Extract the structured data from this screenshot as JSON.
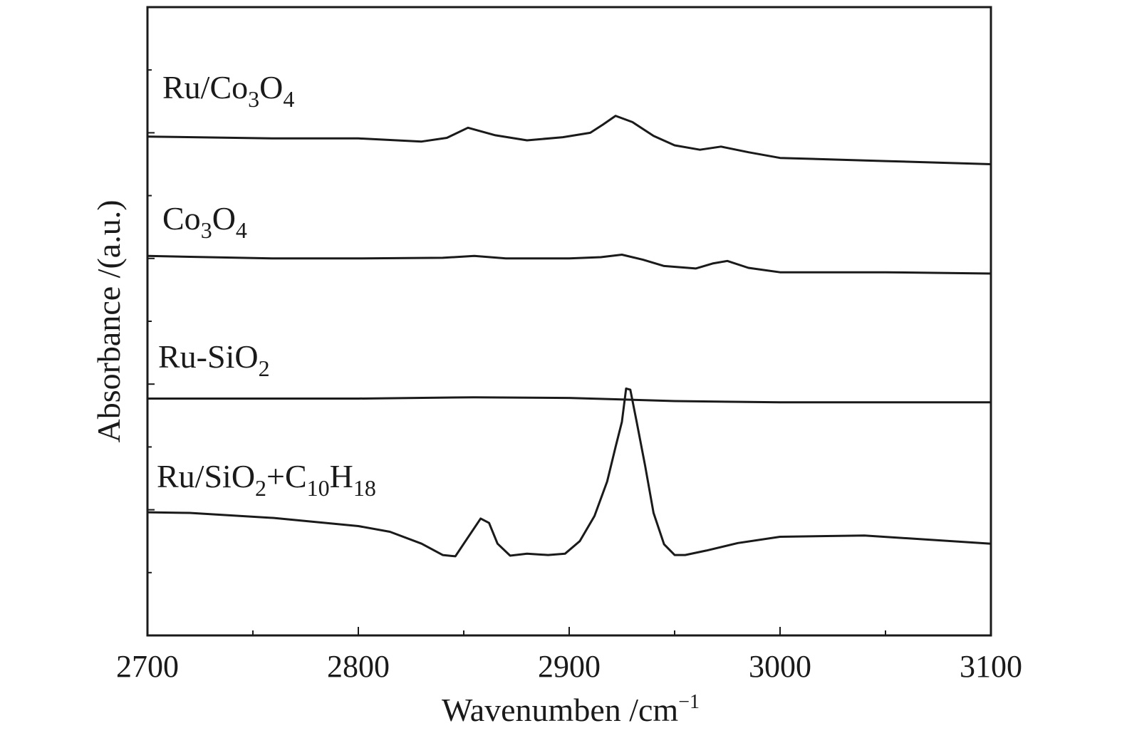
{
  "chart_data": {
    "type": "line",
    "title": "",
    "xlabel": "Wavenumben /cm",
    "xlabel_superscript": "−1",
    "ylabel": "Absorbance /(a.u.)",
    "xlim": [
      2700,
      3100
    ],
    "ylim": [
      0,
      1
    ],
    "y_ticks_labeled": false,
    "grid": false,
    "legend": "labels above each trace",
    "x_ticks": [
      "2700",
      "2800",
      "2900",
      "3000",
      "3100"
    ],
    "x_tick_values": [
      2700,
      2800,
      2900,
      3000,
      3100
    ],
    "series": [
      {
        "name": "Ru/Co3O4",
        "label_parts": [
          {
            "t": "Ru/Co"
          },
          {
            "t": "3",
            "sub": true
          },
          {
            "t": "O"
          },
          {
            "t": "4",
            "sub": true
          }
        ],
        "x": [
          2700,
          2760,
          2800,
          2830,
          2842,
          2852,
          2865,
          2880,
          2897,
          2910,
          2916,
          2922,
          2930,
          2940,
          2950,
          2962,
          2972,
          2985,
          3000,
          3050,
          3100
        ],
        "y": [
          0.794,
          0.791,
          0.791,
          0.786,
          0.792,
          0.808,
          0.796,
          0.788,
          0.793,
          0.8,
          0.813,
          0.827,
          0.817,
          0.795,
          0.78,
          0.773,
          0.778,
          0.769,
          0.76,
          0.755,
          0.75
        ]
      },
      {
        "name": "Co3O4",
        "label_parts": [
          {
            "t": "Co"
          },
          {
            "t": "3",
            "sub": true
          },
          {
            "t": "O"
          },
          {
            "t": "4",
            "sub": true
          }
        ],
        "x": [
          2700,
          2760,
          2800,
          2840,
          2855,
          2870,
          2900,
          2915,
          2925,
          2935,
          2945,
          2960,
          2968,
          2975,
          2985,
          3000,
          3050,
          3100
        ],
        "y": [
          0.604,
          0.6,
          0.6,
          0.601,
          0.604,
          0.6,
          0.6,
          0.602,
          0.606,
          0.598,
          0.588,
          0.584,
          0.592,
          0.596,
          0.585,
          0.578,
          0.578,
          0.576
        ]
      },
      {
        "name": "Ru-SiO2",
        "label_parts": [
          {
            "t": "Ru-SiO"
          },
          {
            "t": "2",
            "sub": true
          }
        ],
        "x": [
          2700,
          2800,
          2855,
          2900,
          2950,
          3000,
          3050,
          3100
        ],
        "y": [
          0.377,
          0.377,
          0.379,
          0.378,
          0.373,
          0.371,
          0.371,
          0.371
        ]
      },
      {
        "name": "Ru/SiO2+C10H18",
        "label_parts": [
          {
            "t": "Ru/SiO"
          },
          {
            "t": "2",
            "sub": true
          },
          {
            "t": "+C"
          },
          {
            "t": "10",
            "sub": true
          },
          {
            "t": "H"
          },
          {
            "t": "18",
            "sub": true
          }
        ],
        "x": [
          2700,
          2720,
          2760,
          2800,
          2815,
          2830,
          2840,
          2846,
          2852,
          2858,
          2862,
          2866,
          2872,
          2880,
          2890,
          2898,
          2905,
          2912,
          2918,
          2922,
          2925,
          2927,
          2929,
          2932,
          2936,
          2940,
          2945,
          2950,
          2955,
          2965,
          2980,
          3000,
          3040,
          3100
        ],
        "y": [
          0.196,
          0.195,
          0.187,
          0.174,
          0.165,
          0.146,
          0.128,
          0.126,
          0.156,
          0.186,
          0.179,
          0.146,
          0.127,
          0.13,
          0.128,
          0.13,
          0.15,
          0.19,
          0.245,
          0.3,
          0.34,
          0.393,
          0.391,
          0.34,
          0.27,
          0.195,
          0.145,
          0.128,
          0.128,
          0.135,
          0.147,
          0.157,
          0.159,
          0.146
        ]
      }
    ]
  }
}
